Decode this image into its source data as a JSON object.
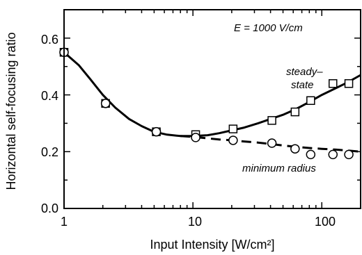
{
  "chart_data": {
    "type": "scatter",
    "xscale": "log",
    "xlim": [
      1,
      200
    ],
    "ylim": [
      0,
      0.7
    ],
    "xlabel": "Input Intensity [W/cm²]",
    "ylabel": "Horizontal self-focusing ratio",
    "xtick_labels": [
      "1",
      "10",
      "100"
    ],
    "ytick_labels": [
      "0.0",
      "0.2",
      "0.4",
      "0.6"
    ],
    "annotations": {
      "field": "E = 1000 V/cm",
      "steady_line1": "steady–",
      "steady_line2": "state",
      "minimum": "minimum radius"
    },
    "series": [
      {
        "name": "steady-state",
        "marker": "square",
        "x": [
          1,
          2.1,
          5.2,
          10.5,
          20.5,
          41,
          62,
          82,
          122,
          162
        ],
        "y": [
          0.55,
          0.37,
          0.27,
          0.26,
          0.28,
          0.31,
          0.34,
          0.38,
          0.44,
          0.44
        ]
      },
      {
        "name": "minimum radius",
        "marker": "circle",
        "x": [
          1,
          2.1,
          5.2,
          10.5,
          20.5,
          41,
          62,
          82,
          122,
          162
        ],
        "y": [
          0.55,
          0.37,
          0.27,
          0.25,
          0.24,
          0.23,
          0.21,
          0.19,
          0.19,
          0.19
        ]
      }
    ],
    "curves": [
      {
        "name": "steady-state fit",
        "style": "solid",
        "x": [
          1,
          1.3,
          1.6,
          2.0,
          2.5,
          3.2,
          4.0,
          5.0,
          6.3,
          8.0,
          10,
          13,
          16,
          20,
          25,
          32,
          40,
          50,
          63,
          80,
          100,
          130,
          160,
          200
        ],
        "y": [
          0.55,
          0.505,
          0.455,
          0.4,
          0.355,
          0.315,
          0.29,
          0.27,
          0.26,
          0.255,
          0.255,
          0.258,
          0.265,
          0.275,
          0.285,
          0.3,
          0.315,
          0.33,
          0.35,
          0.375,
          0.4,
          0.425,
          0.445,
          0.47
        ]
      },
      {
        "name": "minimum radius fit",
        "style": "dashed",
        "x": [
          8.0,
          10,
          13,
          16,
          20,
          25,
          32,
          40,
          50,
          63,
          80,
          100,
          130,
          160,
          200
        ],
        "y": [
          0.255,
          0.252,
          0.247,
          0.243,
          0.24,
          0.236,
          0.232,
          0.227,
          0.222,
          0.217,
          0.213,
          0.21,
          0.207,
          0.204,
          0.2
        ]
      }
    ]
  }
}
